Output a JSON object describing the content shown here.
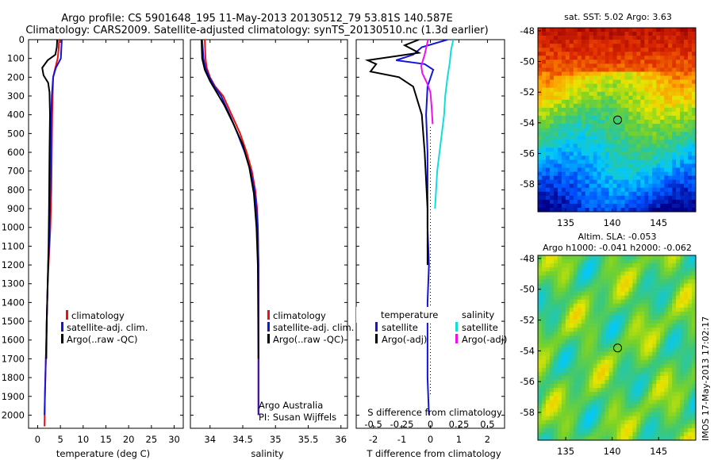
{
  "header": {
    "title_line1": "Argo profile: CS 5901648_195 11-May-2013 20130512_79 53.81S 140.587E",
    "title_line2": "Climatology: CARS2009. Satellite-adjusted climatology: synTS_20130510.nc (1.3d earlier)"
  },
  "colors": {
    "climatology": "#ee1111",
    "satellite": "#1515d8",
    "argo": "#000000",
    "sat_salinity": "#11dddd",
    "argo_salinity": "#ee11ee"
  },
  "chart_data": [
    {
      "id": "temperature",
      "type": "line",
      "xlabel": "temperature (deg C)",
      "ylabel": "",
      "xlim": [
        -2,
        32
      ],
      "ylim": [
        2070,
        0
      ],
      "xticks": [
        0,
        5,
        10,
        15,
        20,
        25,
        30
      ],
      "yticks": [
        0,
        100,
        200,
        300,
        400,
        500,
        600,
        700,
        800,
        900,
        1000,
        1100,
        1200,
        1300,
        1400,
        1500,
        1600,
        1700,
        1800,
        1900,
        2000
      ],
      "ytick_labels": [
        "0",
        "100",
        "200",
        "300",
        "400",
        "500",
        "600",
        "700",
        "800",
        "900",
        "1000",
        "1100",
        "1200",
        "1300",
        "1400",
        "1500",
        "1600",
        "1700",
        "1800",
        "1900",
        "2000"
      ],
      "legend": [
        "climatology",
        "satellite-adj. clim.",
        "Argo(..raw -QC)"
      ],
      "legend_placement": "center-right",
      "series": [
        {
          "name": "climatology",
          "color": "#ee1111",
          "x": [
            4.7,
            4.6,
            4.4,
            3.9,
            3.4,
            3.3,
            3.2,
            3.1,
            3.0,
            2.9,
            2.8,
            2.6,
            2.4,
            2.2,
            2.1,
            2.0,
            1.9,
            1.8,
            1.7,
            1.6,
            1.5
          ],
          "y": [
            0,
            50,
            100,
            150,
            200,
            300,
            400,
            600,
            800,
            900,
            1000,
            1100,
            1200,
            1300,
            1400,
            1500,
            1600,
            1700,
            1800,
            1900,
            2060
          ]
        },
        {
          "name": "satellite-adj. clim.",
          "color": "#1515d8",
          "x": [
            5.3,
            5.2,
            5.1,
            4.0,
            3.4,
            3.1,
            3.0,
            2.9,
            2.8,
            2.7,
            2.6,
            2.5,
            2.3,
            2.2,
            2.1,
            2.0,
            1.9,
            1.8,
            1.7,
            1.6,
            1.5
          ],
          "y": [
            0,
            50,
            100,
            150,
            200,
            300,
            400,
            600,
            800,
            900,
            1000,
            1100,
            1200,
            1300,
            1400,
            1500,
            1600,
            1700,
            1800,
            1900,
            2000
          ]
        },
        {
          "name": "Argo(..raw -QC)",
          "color": "#000000",
          "x": [
            4.3,
            4.2,
            3.9,
            2.2,
            1.0,
            1.3,
            2.3,
            2.6,
            2.7,
            2.6,
            2.5,
            2.4,
            2.2,
            2.0,
            1.9
          ],
          "y": [
            0,
            40,
            80,
            110,
            150,
            190,
            230,
            280,
            400,
            600,
            900,
            1100,
            1300,
            1500,
            1700
          ]
        }
      ]
    },
    {
      "id": "salinity",
      "type": "line",
      "xlabel": "salinity",
      "ylabel": "",
      "xlim": [
        33.7,
        36.1
      ],
      "ylim": [
        2070,
        0
      ],
      "xticks": [
        34,
        34.5,
        35,
        35.5,
        36
      ],
      "legend": [
        "climatology",
        "satellite-adj. clim.",
        "Argo(..raw -QC)"
      ],
      "legend_placement": "center-right",
      "annotation": [
        "Argo Australia",
        "PI: Susan Wijffels"
      ],
      "series": [
        {
          "name": "climatology",
          "color": "#ee1111",
          "x": [
            33.92,
            33.93,
            33.95,
            34.0,
            34.08,
            34.2,
            34.33,
            34.46,
            34.56,
            34.64,
            34.69,
            34.72,
            34.73,
            34.74,
            34.74
          ],
          "y": [
            0,
            100,
            150,
            200,
            250,
            300,
            400,
            500,
            600,
            700,
            800,
            900,
            1000,
            1200,
            2000
          ]
        },
        {
          "name": "satellite-adj. clim.",
          "color": "#1515d8",
          "x": [
            33.88,
            33.9,
            33.93,
            33.99,
            34.07,
            34.17,
            34.3,
            34.42,
            34.53,
            34.62,
            34.68,
            34.71,
            34.73,
            34.74,
            34.74
          ],
          "y": [
            0,
            100,
            150,
            200,
            250,
            300,
            400,
            500,
            600,
            700,
            800,
            900,
            1000,
            1200,
            2000
          ]
        },
        {
          "name": "Argo(..raw -QC)",
          "color": "#000000",
          "x": [
            33.87,
            33.88,
            33.92,
            34.0,
            34.1,
            34.22,
            34.36,
            34.5,
            34.6,
            34.67,
            34.71,
            34.73,
            34.74
          ],
          "y": [
            0,
            100,
            160,
            220,
            280,
            350,
            450,
            560,
            680,
            820,
            1000,
            1200,
            1700
          ]
        }
      ]
    },
    {
      "id": "difference",
      "type": "line",
      "xlabel": "T difference from climatology",
      "xlabel_top": "S difference from climatology",
      "xlim": [
        -2.6,
        2.6
      ],
      "ylim": [
        2070,
        0
      ],
      "xticks": [
        -2,
        -1,
        0,
        1,
        2
      ],
      "sticks": [
        -0.5,
        -0.25,
        0,
        0.25,
        0.5
      ],
      "legend_temperature": {
        "title": "temperature",
        "items": [
          "satellite",
          "Argo(-adj)"
        ]
      },
      "legend_salinity": {
        "title": "salinity",
        "items": [
          "satellite",
          "Argo(-adj)"
        ]
      },
      "series": [
        {
          "name": "satellite",
          "group": "temperature",
          "color": "#1515d8",
          "x": [
            0.6,
            -0.3,
            -0.6,
            -1.2,
            -0.2,
            0.1,
            -0.1,
            -0.15,
            -0.1,
            -0.1,
            -0.1,
            -0.05,
            -0.1,
            -0.1,
            -0.1,
            -0.05
          ],
          "y": [
            0,
            40,
            80,
            110,
            130,
            160,
            250,
            400,
            600,
            800,
            1000,
            1200,
            1400,
            1600,
            1800,
            2000
          ]
        },
        {
          "name": "Argo(-adj)",
          "group": "temperature",
          "color": "#000000",
          "x": [
            -0.4,
            -0.9,
            -0.4,
            -2.2,
            -1.9,
            -2.1,
            -1.1,
            -0.6,
            -0.3,
            -0.2,
            -0.1,
            -0.1
          ],
          "y": [
            0,
            30,
            70,
            110,
            130,
            170,
            200,
            250,
            400,
            600,
            900,
            1200
          ]
        },
        {
          "name": "satellite",
          "group": "salinity",
          "color": "#11dddd",
          "x": [
            0.2,
            0.18,
            0.17,
            0.15,
            0.13,
            0.12,
            0.1,
            0.08,
            0.06,
            0.05,
            0.04
          ],
          "y": [
            0,
            60,
            120,
            200,
            300,
            400,
            500,
            600,
            700,
            800,
            900
          ]
        },
        {
          "name": "Argo(-adj)",
          "group": "salinity",
          "color": "#ee11ee",
          "x": [
            -0.02,
            -0.05,
            -0.08,
            -0.07,
            -0.03,
            0.0,
            0.01,
            0.02
          ],
          "y": [
            0,
            80,
            140,
            180,
            230,
            280,
            350,
            450
          ]
        }
      ]
    },
    {
      "id": "sst_map",
      "type": "heatmap",
      "title": "sat. SST: 5.02 Argo: 3.63",
      "xticks": [
        135,
        140,
        145
      ],
      "yticks": [
        -48,
        -50,
        -52,
        -54,
        -56,
        -58
      ],
      "xlim": [
        132,
        149
      ],
      "ylim": [
        -59.8,
        -47.8
      ],
      "marker": {
        "lon": 140.587,
        "lat": -53.81
      }
    },
    {
      "id": "sla_map",
      "type": "heatmap",
      "title_line1": "Altim. SLA: -0.053",
      "title_line2": "Argo h1000: -0.041 h2000: -0.062",
      "xticks": [
        135,
        140,
        145
      ],
      "yticks": [
        -48,
        -50,
        -52,
        -54,
        -56,
        -58
      ],
      "xlim": [
        132,
        149
      ],
      "ylim": [
        -59.8,
        -47.8
      ],
      "marker": {
        "lon": 140.587,
        "lat": -53.81
      }
    }
  ],
  "footer": {
    "credit": "IMOS 17-May-2013 17:02:17"
  }
}
